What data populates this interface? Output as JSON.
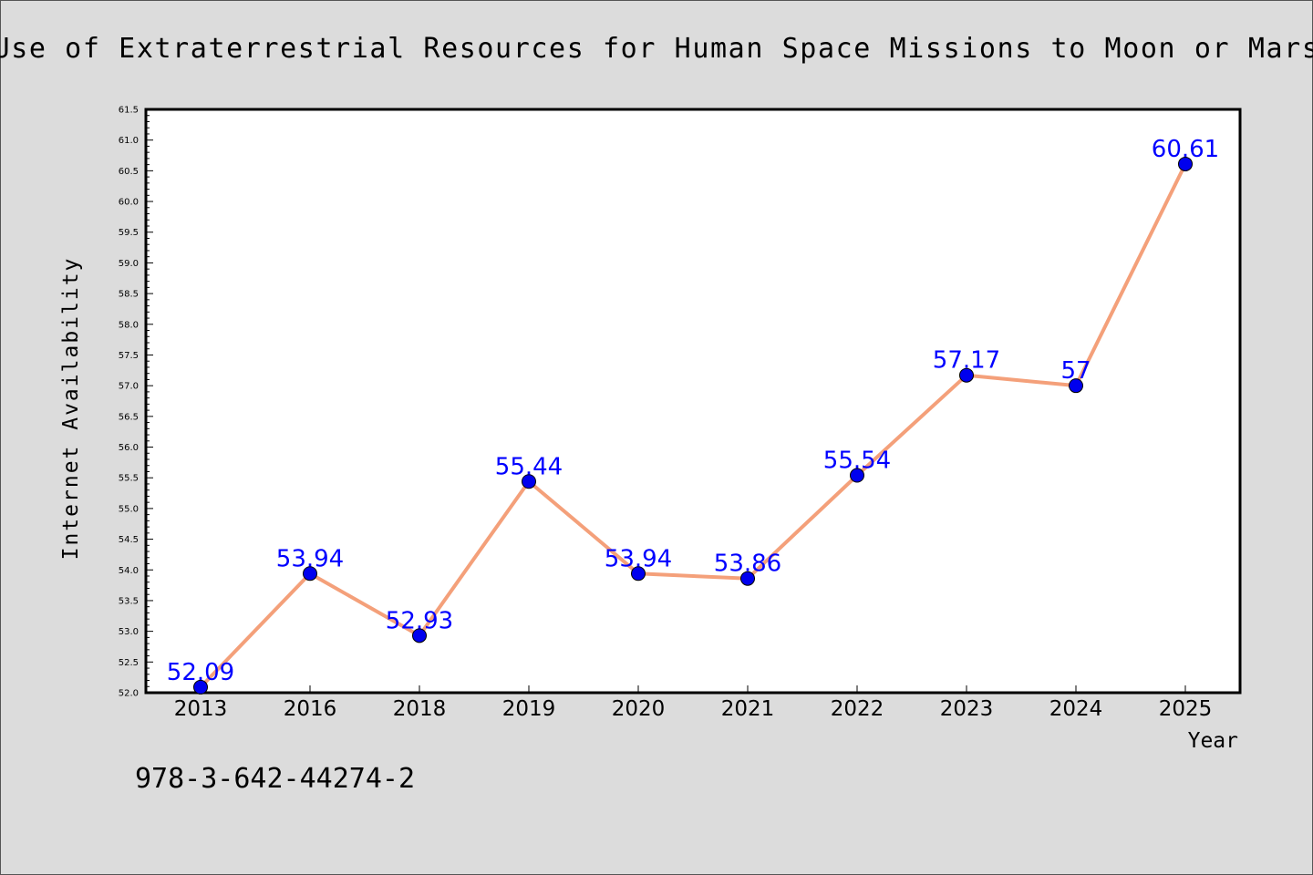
{
  "chart_data": {
    "type": "line",
    "title": "Use of Extraterrestrial Resources for Human Space Missions to Moon or Mars",
    "xlabel": "Year",
    "ylabel": "Internet Availability",
    "categories": [
      "2013",
      "2016",
      "2018",
      "2019",
      "2020",
      "2021",
      "2022",
      "2023",
      "2024",
      "2025"
    ],
    "series": [
      {
        "values": [
          52.09,
          53.94,
          52.93,
          55.44,
          53.94,
          53.86,
          55.54,
          57.17,
          57.0,
          60.61
        ],
        "labels": [
          "52.09",
          "53.94",
          "52.93",
          "55.44",
          "53.94",
          "53.86",
          "55.54",
          "57.17",
          "57",
          "60.61"
        ],
        "line_color": "#f4a07a",
        "marker_color": "#0000ee",
        "label_color": "#0000ff"
      }
    ],
    "ylim": [
      52.0,
      61.5
    ],
    "yticks": [
      "52.0",
      "52.5",
      "53.0",
      "53.5",
      "54.0",
      "54.5",
      "55.0",
      "55.5",
      "56.0",
      "56.5",
      "57.0",
      "57.5",
      "58.0",
      "58.5",
      "59.0",
      "59.5",
      "60.0",
      "60.5",
      "61.0",
      "61.5"
    ],
    "grid": false,
    "legend": "none"
  },
  "isbn": "978-3-642-44274-2",
  "colors": {
    "background": "#dcdcdc",
    "plot_area": "#ffffff"
  }
}
